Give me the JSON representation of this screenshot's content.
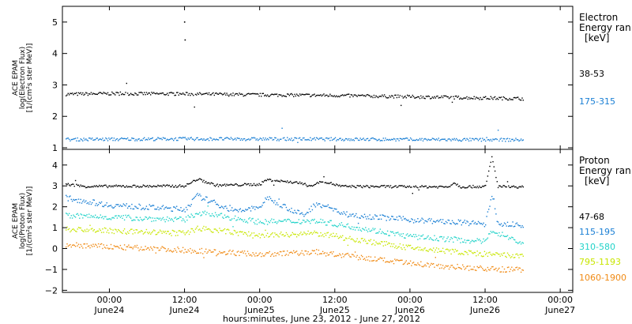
{
  "chart_data": {
    "type": "scatter",
    "xlabel": "hours:minutes, June 23, 2012 - June 27, 2012",
    "xlim": [
      "2012-06-23 16:30",
      "2012-06-27 02:00"
    ],
    "x_ticks": [
      {
        "time": "00:00",
        "date": "June24",
        "at": "2012-06-24 00:00"
      },
      {
        "time": "12:00",
        "date": "June24",
        "at": "2012-06-24 12:00"
      },
      {
        "time": "00:00",
        "date": "June25",
        "at": "2012-06-25 00:00"
      },
      {
        "time": "12:00",
        "date": "June25",
        "at": "2012-06-25 12:00"
      },
      {
        "time": "00:00",
        "date": "June26",
        "at": "2012-06-26 00:00"
      },
      {
        "time": "12:00",
        "date": "June26",
        "at": "2012-06-26 12:00"
      },
      {
        "time": "00:00",
        "date": "June27",
        "at": "2012-06-27 00:00"
      }
    ],
    "panels": [
      {
        "id": "electron",
        "ylabel_lines": [
          "ACE EPAM",
          "log(Electron Flux)",
          "[1/(cm²s ster MeV)]"
        ],
        "ylim": [
          0.95,
          5.5
        ],
        "yticks": [
          1,
          2,
          3,
          4,
          5
        ],
        "legend_title": [
          "Electron",
          "Energy ran"
        ],
        "legend_unit": "[keV]",
        "series": [
          {
            "name": "38-53",
            "color": "#000000",
            "points": [
              [
                "2012-06-23 17:00",
                2.72
              ],
              [
                "2012-06-24 00:00",
                2.74
              ],
              [
                "2012-06-24 12:00",
                2.73
              ],
              [
                "2012-06-25 00:00",
                2.7
              ],
              [
                "2012-06-25 12:00",
                2.68
              ],
              [
                "2012-06-26 00:00",
                2.64
              ],
              [
                "2012-06-26 12:00",
                2.6
              ],
              [
                "2012-06-26 18:00",
                2.58
              ]
            ],
            "outliers": [
              [
                "2012-06-24 11:55",
                5.02
              ],
              [
                "2012-06-24 12:00",
                4.45
              ]
            ]
          },
          {
            "name": "175-315",
            "color": "#1a7fd4",
            "points": [
              [
                "2012-06-23 17:00",
                1.28
              ],
              [
                "2012-06-24 12:00",
                1.3
              ],
              [
                "2012-06-25 12:00",
                1.29
              ],
              [
                "2012-06-26 12:00",
                1.27
              ],
              [
                "2012-06-26 18:00",
                1.27
              ]
            ]
          }
        ]
      },
      {
        "id": "proton",
        "ylabel_lines": [
          "ACE EPAM",
          "log(Proton Flux)",
          "[1/(cm²s ster MeV)]"
        ],
        "ylim": [
          -2.1,
          4.75
        ],
        "yticks": [
          -2,
          -1,
          0,
          1,
          2,
          3,
          4
        ],
        "legend_title": [
          "Proton",
          "Energy ran"
        ],
        "legend_unit": "[keV]",
        "series": [
          {
            "name": "47-68",
            "color": "#000000",
            "points": [
              [
                "2012-06-23 17:00",
                3.1
              ],
              [
                "2012-06-23 20:00",
                3.0
              ],
              [
                "2012-06-24 12:00",
                3.02
              ],
              [
                "2012-06-24 14:00",
                3.35
              ],
              [
                "2012-06-24 17:00",
                3.05
              ],
              [
                "2012-06-25 00:00",
                3.1
              ],
              [
                "2012-06-25 01:00",
                3.32
              ],
              [
                "2012-06-25 06:00",
                3.18
              ],
              [
                "2012-06-25 08:00",
                3.02
              ],
              [
                "2012-06-25 10:00",
                3.25
              ],
              [
                "2012-06-25 13:00",
                3.0
              ],
              [
                "2012-06-26 06:00",
                2.98
              ],
              [
                "2012-06-26 07:00",
                3.18
              ],
              [
                "2012-06-26 08:00",
                2.98
              ],
              [
                "2012-06-26 12:00",
                3.0
              ],
              [
                "2012-06-26 13:00",
                4.4
              ],
              [
                "2012-06-26 14:00",
                3.0
              ],
              [
                "2012-06-26 18:00",
                2.97
              ]
            ]
          },
          {
            "name": "115-195",
            "color": "#1a7fd4",
            "points": [
              [
                "2012-06-23 17:00",
                2.45
              ],
              [
                "2012-06-24 00:00",
                2.1
              ],
              [
                "2012-06-24 12:00",
                1.9
              ],
              [
                "2012-06-24 14:00",
                2.55
              ],
              [
                "2012-06-24 20:00",
                1.8
              ],
              [
                "2012-06-25 00:00",
                2.0
              ],
              [
                "2012-06-25 01:00",
                2.45
              ],
              [
                "2012-06-25 07:00",
                1.6
              ],
              [
                "2012-06-25 09:00",
                2.2
              ],
              [
                "2012-06-25 14:00",
                1.65
              ],
              [
                "2012-06-26 00:00",
                1.4
              ],
              [
                "2012-06-26 12:00",
                1.2
              ],
              [
                "2012-06-26 13:00",
                2.6
              ],
              [
                "2012-06-26 14:00",
                1.2
              ],
              [
                "2012-06-26 18:00",
                1.15
              ]
            ]
          },
          {
            "name": "310-580",
            "color": "#22d3c9",
            "points": [
              [
                "2012-06-23 17:00",
                1.6
              ],
              [
                "2012-06-24 12:00",
                1.4
              ],
              [
                "2012-06-24 14:00",
                1.75
              ],
              [
                "2012-06-25 00:00",
                1.3
              ],
              [
                "2012-06-25 09:00",
                1.35
              ],
              [
                "2012-06-26 00:00",
                0.6
              ],
              [
                "2012-06-26 12:00",
                0.35
              ],
              [
                "2012-06-26 13:00",
                0.9
              ],
              [
                "2012-06-26 18:00",
                0.25
              ]
            ]
          },
          {
            "name": "795-1193",
            "color": "#c8e600",
            "points": [
              [
                "2012-06-23 17:00",
                0.95
              ],
              [
                "2012-06-24 12:00",
                0.75
              ],
              [
                "2012-06-24 14:00",
                1.0
              ],
              [
                "2012-06-25 00:00",
                0.65
              ],
              [
                "2012-06-25 09:00",
                0.75
              ],
              [
                "2012-06-26 00:00",
                0.05
              ],
              [
                "2012-06-26 12:00",
                -0.25
              ],
              [
                "2012-06-26 18:00",
                -0.35
              ]
            ]
          },
          {
            "name": "1060-1900",
            "color": "#f08a14",
            "points": [
              [
                "2012-06-23 17:00",
                0.2
              ],
              [
                "2012-06-24 12:00",
                -0.05
              ],
              [
                "2012-06-25 00:00",
                -0.25
              ],
              [
                "2012-06-25 09:00",
                -0.15
              ],
              [
                "2012-06-26 00:00",
                -0.7
              ],
              [
                "2012-06-26 12:00",
                -0.95
              ],
              [
                "2012-06-26 18:00",
                -1.0
              ]
            ]
          }
        ]
      }
    ]
  }
}
